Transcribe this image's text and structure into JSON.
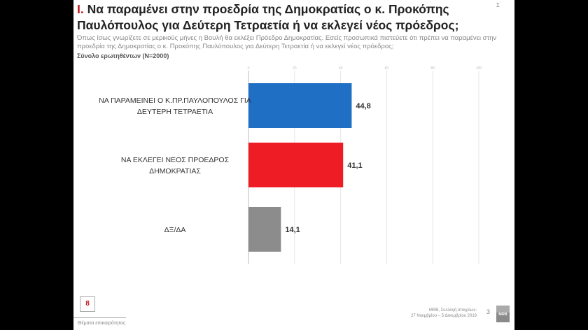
{
  "header": {
    "title_num": "I.",
    "title": "Να παραμένει στην προεδρία της Δημοκρατίας ο κ. Προκόπης Παυλόπουλος για Δεύτερη Τετραετία ή να εκλεγεί νέος πρόεδρος;",
    "subtitle": "Όπως ίσως γνωρίζετε σε μερικούς μήνες η Βουλή θα εκλέξει Πρόεδρο Δημοκρατίας. Εσείς προσωπικά πιστεύετε ότι πρέπει να παραμένει στην προεδρία της Δημοκρατίας ο κ. Προκόπης Παυλόπουλος για Δεύτερη Τετραετία ή να εκλεγεί νέος πρόεδρος;",
    "base": "Σύνολο ερωτηθέντων (N=2000)",
    "sigma": "Σ"
  },
  "chart_data": {
    "type": "bar",
    "orientation": "horizontal",
    "categories": [
      [
        "ΝΑ ΠΑΡΑΜΕΙΝΕΙ Ο Κ.ΠΡ.ΠΑΥΛΟΠΟΥΛΟΣ ΓΙΑ",
        "ΔΕΥΤΕΡΗ ΤΕΤΡΑΕΤΙΑ"
      ],
      [
        "ΝΑ ΕΚΛΕΓΕΙ ΝΕΟΣ ΠΡΟΕΔΡΟΣ",
        "ΔΗΜΟΚΡΑΤΙΑΣ"
      ],
      [
        "ΔΞ/ΔΑ"
      ]
    ],
    "values": [
      44.8,
      41.1,
      14.1
    ],
    "value_labels": [
      "44,8",
      "41,1",
      "14,1"
    ],
    "colors": [
      "#1f6fc5",
      "#ee1c25",
      "#8c8c8c"
    ],
    "xlim": [
      0,
      100
    ],
    "ticks": [
      0,
      20,
      40,
      60,
      80,
      100
    ],
    "grid": true
  },
  "footer": {
    "box_number": "8",
    "section": "Θέματα επικαιρότητας",
    "source_line1": "MRB, Συλλογή στοιχείων:",
    "source_line2": "27 Νοεμβρίου – 5 Δεκεμβρίου 2019",
    "page": "3",
    "logo": "MRB"
  }
}
